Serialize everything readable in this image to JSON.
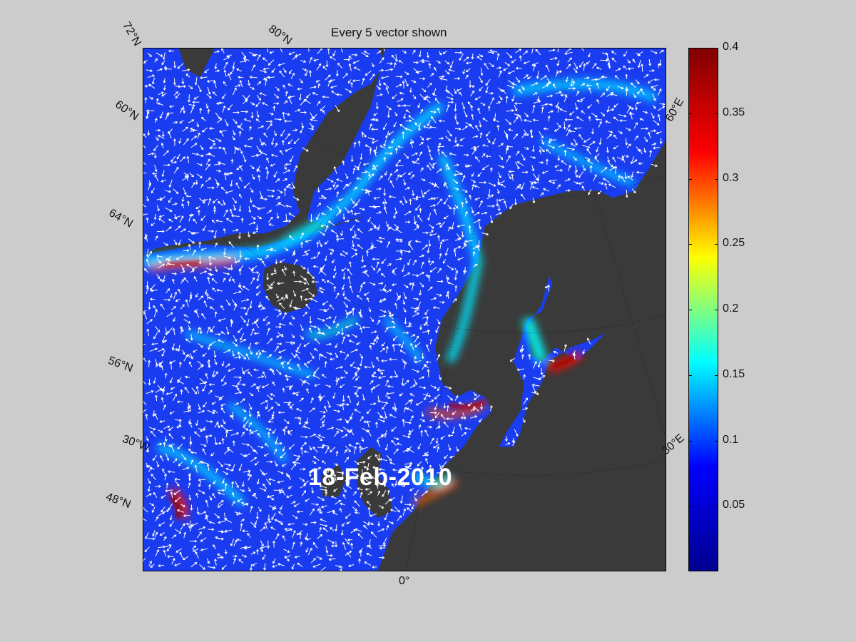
{
  "title": "Every 5 vector shown",
  "date": "18-Feb-2010",
  "graticule_labels": {
    "lat_72": "72°N",
    "lat_80": "80°N",
    "lat_60_left": "60°N",
    "lon_60e": "60°E",
    "lat_64": "64°N",
    "lat_56": "56°N",
    "lon_30w": "30°W",
    "lon_30e": "30°E",
    "lat_48": "48°N",
    "lon_0": "0°"
  },
  "colorbar": {
    "min": 0,
    "max": 0.4,
    "ticks": [
      "0.4",
      "0.35",
      "0.3",
      "0.25",
      "0.2",
      "0.15",
      "0.1",
      "0.05"
    ],
    "tick_values": [
      0.4,
      0.35,
      0.3,
      0.25,
      0.2,
      0.15,
      0.1,
      0.05
    ],
    "colormap": "jet",
    "colors": [
      "#00008f",
      "#0000ff",
      "#00ffff",
      "#ffff00",
      "#ff0000",
      "#800000"
    ]
  },
  "colors": {
    "land": "#3a3a3a",
    "ocean": "#1a3cf0",
    "vectors": "#ffffff",
    "background": "#cccccc"
  }
}
